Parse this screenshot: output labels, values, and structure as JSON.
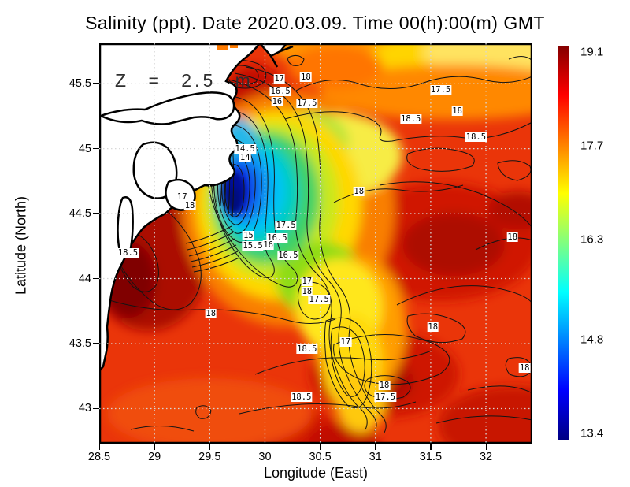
{
  "chart_data": {
    "type": "heatmap",
    "title": "Salinity (ppt). Date 2020.03.09. Time 00(h):00(m) GMT",
    "variable": "Salinity (ppt)",
    "date": "2020.03.09",
    "time": "00(h):00(m) GMT",
    "depth_annotation": "Z = 2.5 m",
    "xlabel": "Longitude (East)",
    "ylabel": "Latitude (North)",
    "x_range": [
      28.5,
      32.42
    ],
    "y_range": [
      42.73,
      45.81
    ],
    "x_ticks": [
      {
        "v": 28.5,
        "label": "28.5"
      },
      {
        "v": 29,
        "label": "29"
      },
      {
        "v": 29.5,
        "label": "29.5"
      },
      {
        "v": 30,
        "label": "30"
      },
      {
        "v": 30.5,
        "label": "30.5"
      },
      {
        "v": 31,
        "label": "31"
      },
      {
        "v": 31.5,
        "label": "31.5"
      },
      {
        "v": 32,
        "label": "32"
      }
    ],
    "y_ticks": [
      {
        "v": 43,
        "label": "43"
      },
      {
        "v": 43.5,
        "label": "43.5"
      },
      {
        "v": 44,
        "label": "44"
      },
      {
        "v": 44.5,
        "label": "44.5"
      },
      {
        "v": 45,
        "label": "45"
      },
      {
        "v": 45.5,
        "label": "45.5"
      }
    ],
    "grid": "dotted",
    "contour_interval": 0.5,
    "contour_levels": [
      14,
      14.5,
      15,
      15.5,
      16,
      16.5,
      17,
      17.5,
      18,
      18.5
    ],
    "value_range": [
      13.4,
      19.1
    ],
    "colorbar": {
      "min": 13.4,
      "max": 19.1,
      "ticks": [
        {
          "v": 19.1,
          "label": "19.1"
        },
        {
          "v": 17.7,
          "label": "17.7"
        },
        {
          "v": 16.3,
          "label": "16.3"
        },
        {
          "v": 14.8,
          "label": "14.8"
        },
        {
          "v": 13.4,
          "label": "13.4"
        }
      ],
      "colors": [
        "#000083",
        "#0000ff",
        "#0080ff",
        "#00ffff",
        "#80ff80",
        "#ffff00",
        "#ff8000",
        "#ff0000",
        "#830000"
      ]
    },
    "contour_labels": [
      {
        "v": "17",
        "lon": 30.13,
        "lat": 45.54
      },
      {
        "v": "16.5",
        "lon": 30.14,
        "lat": 45.44
      },
      {
        "v": "16",
        "lon": 30.11,
        "lat": 45.36
      },
      {
        "v": "18",
        "lon": 30.37,
        "lat": 45.55
      },
      {
        "v": "17.5",
        "lon": 30.38,
        "lat": 45.35
      },
      {
        "v": "17.5",
        "lon": 31.59,
        "lat": 45.45
      },
      {
        "v": "18",
        "lon": 31.74,
        "lat": 45.29
      },
      {
        "v": "18.5",
        "lon": 31.32,
        "lat": 45.23
      },
      {
        "v": "18.5",
        "lon": 31.91,
        "lat": 45.09
      },
      {
        "v": "14.5",
        "lon": 29.82,
        "lat": 45.0
      },
      {
        "v": "14",
        "lon": 29.82,
        "lat": 44.93
      },
      {
        "v": "17",
        "lon": 29.25,
        "lat": 44.63
      },
      {
        "v": "18",
        "lon": 29.32,
        "lat": 44.56
      },
      {
        "v": "18.5",
        "lon": 28.76,
        "lat": 44.2
      },
      {
        "v": "18",
        "lon": 30.85,
        "lat": 44.67
      },
      {
        "v": "18",
        "lon": 32.24,
        "lat": 44.32
      },
      {
        "v": "17.5",
        "lon": 30.19,
        "lat": 44.41
      },
      {
        "v": "15",
        "lon": 29.85,
        "lat": 44.33
      },
      {
        "v": "16.5",
        "lon": 30.11,
        "lat": 44.31
      },
      {
        "v": "15.5",
        "lon": 29.89,
        "lat": 44.25
      },
      {
        "v": "16",
        "lon": 30.03,
        "lat": 44.26
      },
      {
        "v": "16.5",
        "lon": 30.21,
        "lat": 44.18
      },
      {
        "v": "17",
        "lon": 30.38,
        "lat": 43.98
      },
      {
        "v": "18",
        "lon": 30.38,
        "lat": 43.9
      },
      {
        "v": "17.5",
        "lon": 30.49,
        "lat": 43.84
      },
      {
        "v": "18",
        "lon": 29.51,
        "lat": 43.73
      },
      {
        "v": "18",
        "lon": 31.52,
        "lat": 43.63
      },
      {
        "v": "18.5",
        "lon": 30.38,
        "lat": 43.46
      },
      {
        "v": "17",
        "lon": 30.73,
        "lat": 43.51
      },
      {
        "v": "18",
        "lon": 31.08,
        "lat": 43.18
      },
      {
        "v": "17.5",
        "lon": 31.09,
        "lat": 43.09
      },
      {
        "v": "18.5",
        "lon": 30.33,
        "lat": 43.09
      },
      {
        "v": "18",
        "lon": 32.35,
        "lat": 43.31
      }
    ]
  }
}
